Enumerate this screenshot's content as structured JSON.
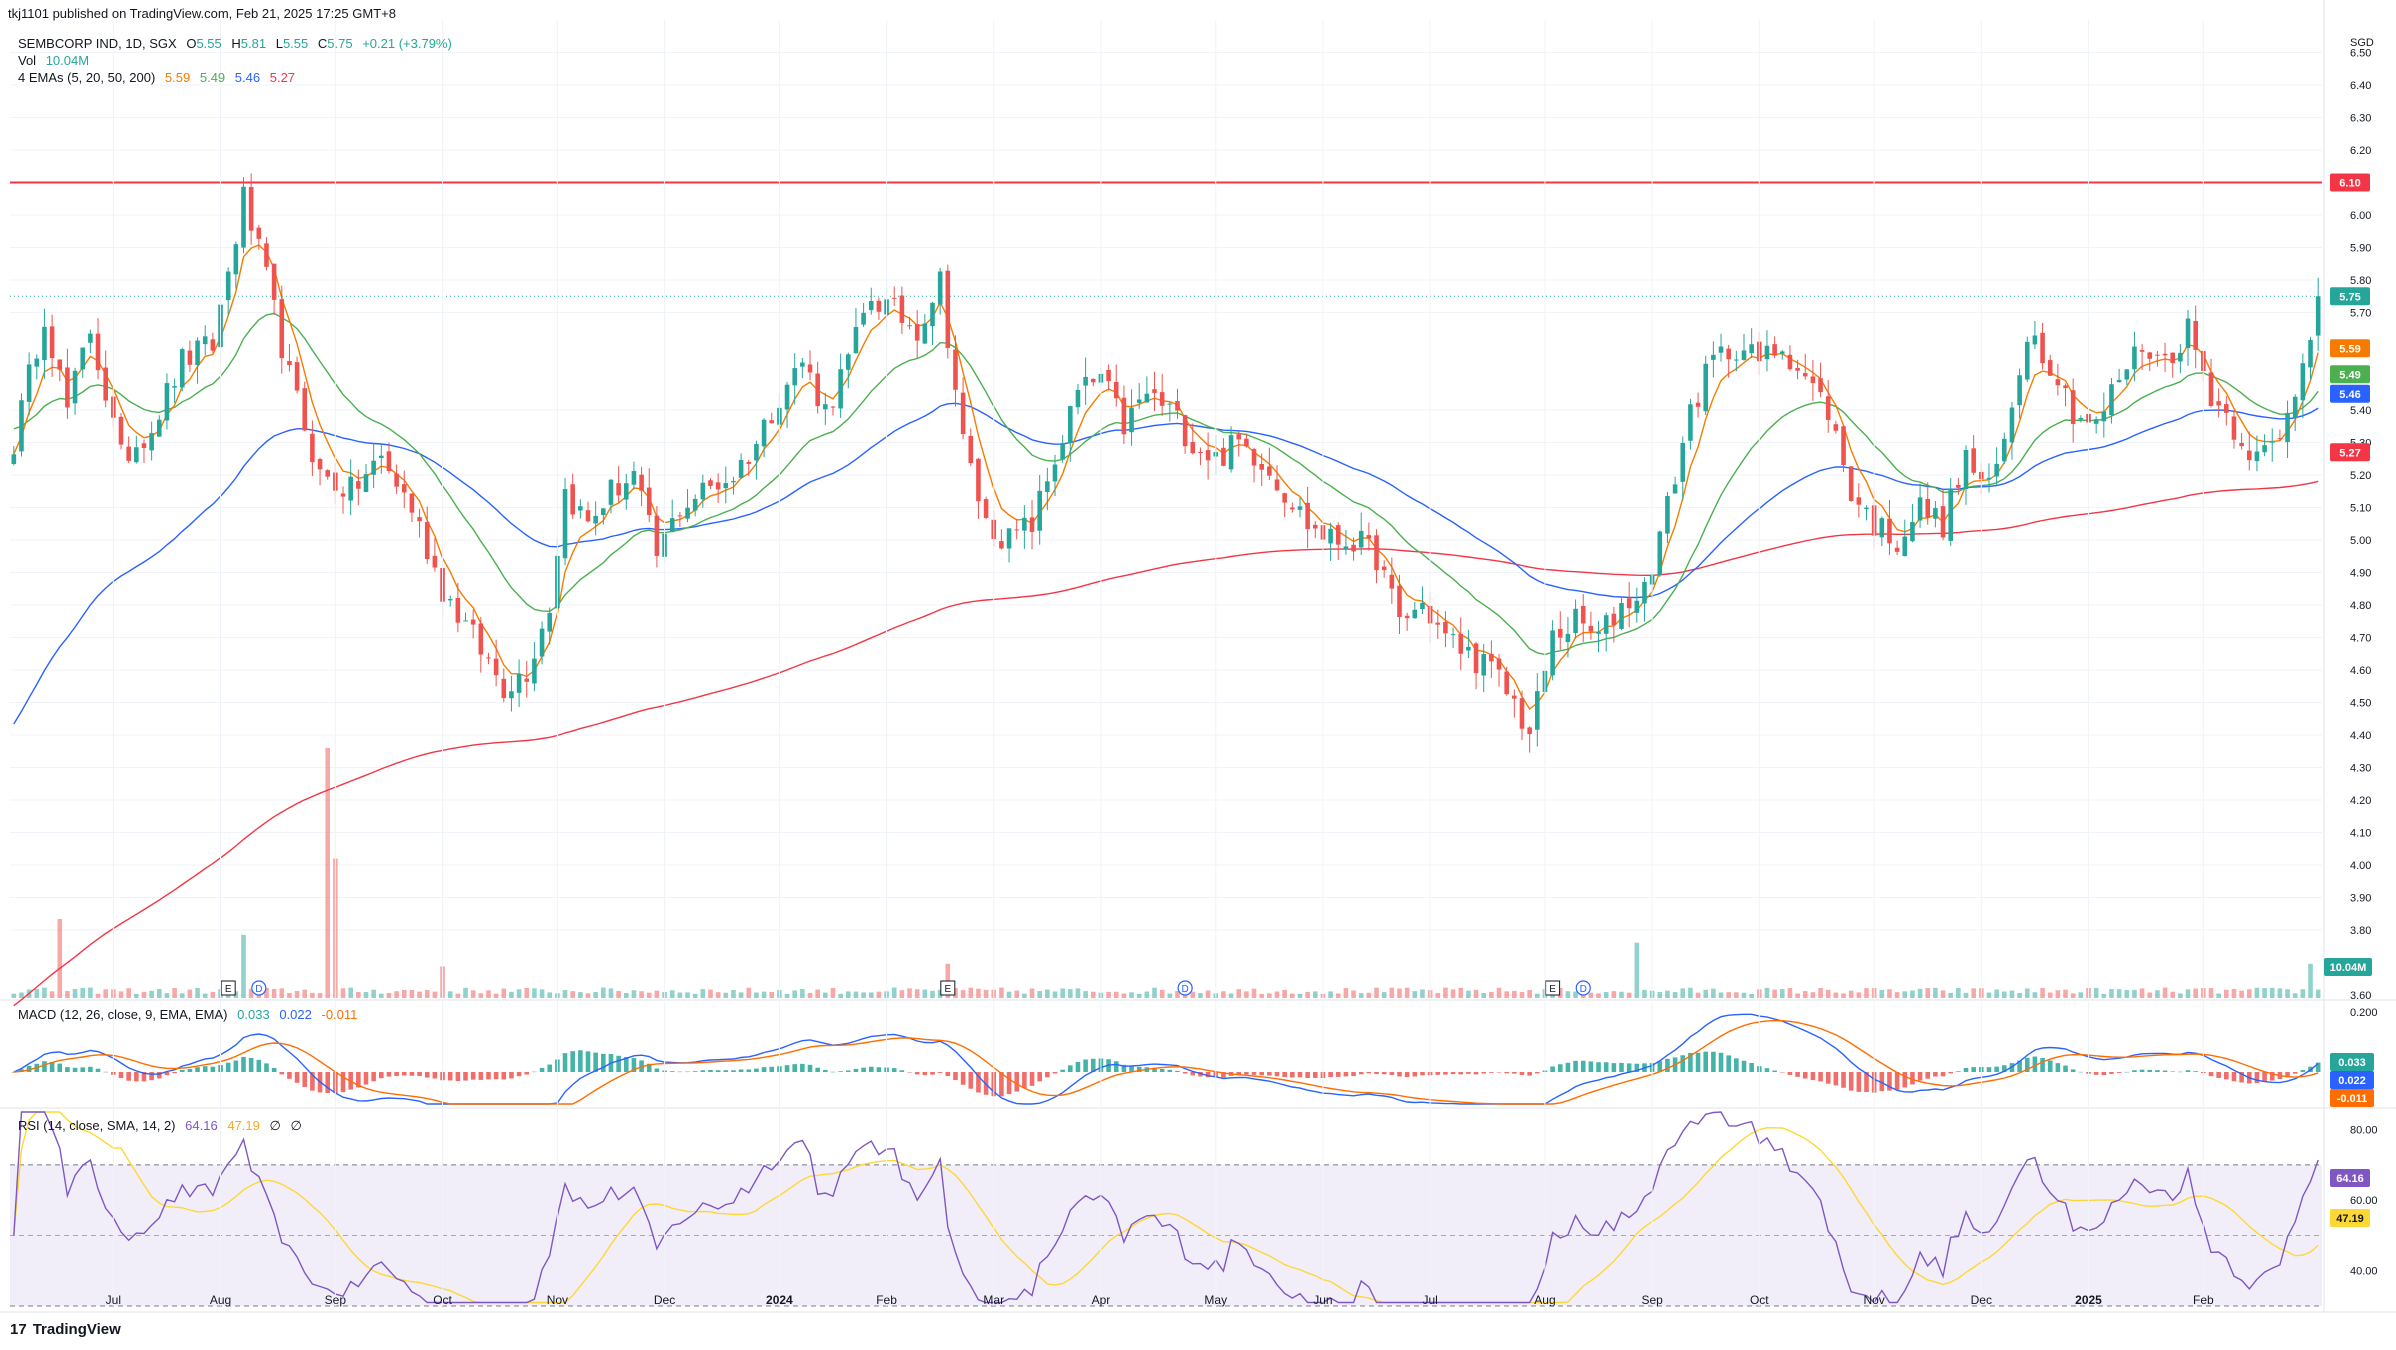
{
  "header": {
    "publisher": "tkj1101 published on TradingView.com, Feb 21, 2025 17:25 GMT+8"
  },
  "symbol": {
    "name": "SEMBCORP IND, 1D, SGX",
    "o_label": "O",
    "o": "5.55",
    "h_label": "H",
    "h": "5.81",
    "l_label": "L",
    "l": "5.55",
    "c_label": "C",
    "c": "5.75",
    "change": "+0.21 (+3.79%)"
  },
  "volume": {
    "label": "Vol",
    "value": "10.04M"
  },
  "ema_legend": {
    "label": "4 EMAs (5, 20, 50, 200)",
    "values": [
      "5.59",
      "5.49",
      "5.46",
      "5.27"
    ]
  },
  "macd_legend": {
    "label": "MACD (12, 26, close, 9, EMA, EMA)",
    "values": [
      "0.033",
      "0.022",
      "-0.011"
    ]
  },
  "rsi_legend": {
    "label": "RSI (14, close, SMA, 14, 2)",
    "values": [
      "64.16",
      "47.19",
      "∅",
      "∅"
    ]
  },
  "brand": {
    "name": "TradingView",
    "logo": "17"
  },
  "colors": {
    "up": "#26a69a",
    "down": "#ef5350",
    "ema5": "#f57c00",
    "ema20": "#4caf50",
    "ema50": "#2962ff",
    "ema200": "#f23645",
    "resistance": "#f23645",
    "macd": "#2962ff",
    "signal": "#ff6d00",
    "rsi": "#7e57c2",
    "rsi_ma": "#fdd835",
    "rsi_band": "#7e57c2"
  },
  "chart_data": [
    {
      "type": "candlestick",
      "title": "SEMBCORP IND, 1D, SGX",
      "currency": "SGD",
      "ylim": [
        3.6,
        6.6
      ],
      "y_ticks": [
        "6.50",
        "6.40",
        "6.30",
        "6.20",
        "6.00",
        "5.90",
        "5.80",
        "5.70",
        "5.40",
        "5.30",
        "5.20",
        "5.10",
        "5.00",
        "4.90",
        "4.80",
        "4.70",
        "4.60",
        "4.50",
        "4.40",
        "4.30",
        "4.20",
        "4.10",
        "4.00",
        "3.90",
        "3.80",
        "3.60"
      ],
      "x_ticks": [
        "Jul",
        "Aug",
        "Sep",
        "Oct",
        "Nov",
        "Dec",
        "2024",
        "Feb",
        "Mar",
        "Apr",
        "May",
        "Jun",
        "Jul",
        "Aug",
        "Sep",
        "Oct",
        "Nov",
        "Dec",
        "2025",
        "Feb"
      ],
      "price_path": [
        [
          0,
          5.3
        ],
        [
          4,
          5.7
        ],
        [
          7,
          5.4
        ],
        [
          10,
          5.65
        ],
        [
          14,
          5.25
        ],
        [
          18,
          5.35
        ],
        [
          22,
          5.55
        ],
        [
          26,
          5.6
        ],
        [
          30,
          6.05
        ],
        [
          33,
          5.8
        ],
        [
          36,
          5.5
        ],
        [
          40,
          5.2
        ],
        [
          44,
          5.15
        ],
        [
          48,
          5.25
        ],
        [
          52,
          5.1
        ],
        [
          56,
          4.85
        ],
        [
          60,
          4.7
        ],
        [
          64,
          4.55
        ],
        [
          67,
          4.6
        ],
        [
          70,
          4.8
        ],
        [
          72,
          5.15
        ],
        [
          75,
          5.05
        ],
        [
          78,
          5.15
        ],
        [
          81,
          5.2
        ],
        [
          84,
          4.95
        ],
        [
          87,
          5.1
        ],
        [
          90,
          5.15
        ],
        [
          94,
          5.2
        ],
        [
          97,
          5.3
        ],
        [
          100,
          5.45
        ],
        [
          103,
          5.55
        ],
        [
          106,
          5.4
        ],
        [
          109,
          5.55
        ],
        [
          112,
          5.75
        ],
        [
          115,
          5.7
        ],
        [
          118,
          5.65
        ],
        [
          121,
          5.8
        ],
        [
          124,
          5.3
        ],
        [
          127,
          5.05
        ],
        [
          130,
          5.0
        ],
        [
          133,
          5.05
        ],
        [
          136,
          5.25
        ],
        [
          139,
          5.45
        ],
        [
          142,
          5.5
        ],
        [
          145,
          5.35
        ],
        [
          148,
          5.45
        ],
        [
          151,
          5.4
        ],
        [
          154,
          5.3
        ],
        [
          157,
          5.25
        ],
        [
          160,
          5.3
        ],
        [
          163,
          5.25
        ],
        [
          166,
          5.15
        ],
        [
          169,
          5.05
        ],
        [
          172,
          5.0
        ],
        [
          175,
          5.0
        ],
        [
          178,
          4.95
        ],
        [
          181,
          4.75
        ],
        [
          184,
          4.8
        ],
        [
          187,
          4.7
        ],
        [
          190,
          4.65
        ],
        [
          193,
          4.6
        ],
        [
          196,
          4.5
        ],
        [
          198,
          4.4
        ],
        [
          201,
          4.7
        ],
        [
          204,
          4.75
        ],
        [
          207,
          4.7
        ],
        [
          210,
          4.8
        ],
        [
          213,
          4.85
        ],
        [
          216,
          5.1
        ],
        [
          219,
          5.4
        ],
        [
          222,
          5.55
        ],
        [
          225,
          5.6
        ],
        [
          228,
          5.55
        ],
        [
          231,
          5.6
        ],
        [
          234,
          5.5
        ],
        [
          237,
          5.4
        ],
        [
          240,
          5.15
        ],
        [
          243,
          5.05
        ],
        [
          246,
          5.0
        ],
        [
          249,
          5.1
        ],
        [
          252,
          5.05
        ],
        [
          255,
          5.25
        ],
        [
          258,
          5.15
        ],
        [
          260,
          5.3
        ],
        [
          263,
          5.65
        ],
        [
          266,
          5.55
        ],
        [
          269,
          5.4
        ],
        [
          272,
          5.35
        ],
        [
          275,
          5.5
        ],
        [
          278,
          5.6
        ],
        [
          281,
          5.55
        ],
        [
          284,
          5.65
        ],
        [
          287,
          5.45
        ],
        [
          290,
          5.35
        ],
        [
          293,
          5.25
        ],
        [
          296,
          5.3
        ],
        [
          299,
          5.55
        ],
        [
          301,
          5.75
        ]
      ],
      "resistance_level": 6.1,
      "last_close": 5.75,
      "ema_last": [
        5.59,
        5.49,
        5.46,
        5.27
      ]
    },
    {
      "type": "bar",
      "title": "Volume",
      "last": "10.04M",
      "spikes": [
        [
          6,
          3.0
        ],
        [
          30,
          2.4
        ],
        [
          41,
          9.5
        ],
        [
          42,
          5.3
        ],
        [
          56,
          1.2
        ],
        [
          122,
          1.3
        ],
        [
          212,
          2.1
        ],
        [
          300,
          1.3
        ]
      ],
      "event_markers": [
        {
          "index": 28,
          "label": "E"
        },
        {
          "index": 32,
          "label": "D"
        },
        {
          "index": 122,
          "label": "E"
        },
        {
          "index": 153,
          "label": "D"
        },
        {
          "index": 201,
          "label": "E"
        },
        {
          "index": 205,
          "label": "D"
        }
      ]
    },
    {
      "type": "line",
      "title": "MACD (12, 26, close, 9, EMA, EMA)",
      "y_ticks": [
        "0.200"
      ],
      "last": {
        "macd": "0.022",
        "signal": "-0.011",
        "hist": "0.033"
      }
    },
    {
      "type": "line",
      "title": "RSI (14, close, SMA, 14, 2)",
      "ylim": [
        30,
        85
      ],
      "y_ticks": [
        "80.00",
        "60.00",
        "40.00"
      ],
      "bands": [
        30,
        70
      ],
      "last": {
        "rsi": "64.16",
        "ma": "47.19"
      }
    }
  ]
}
